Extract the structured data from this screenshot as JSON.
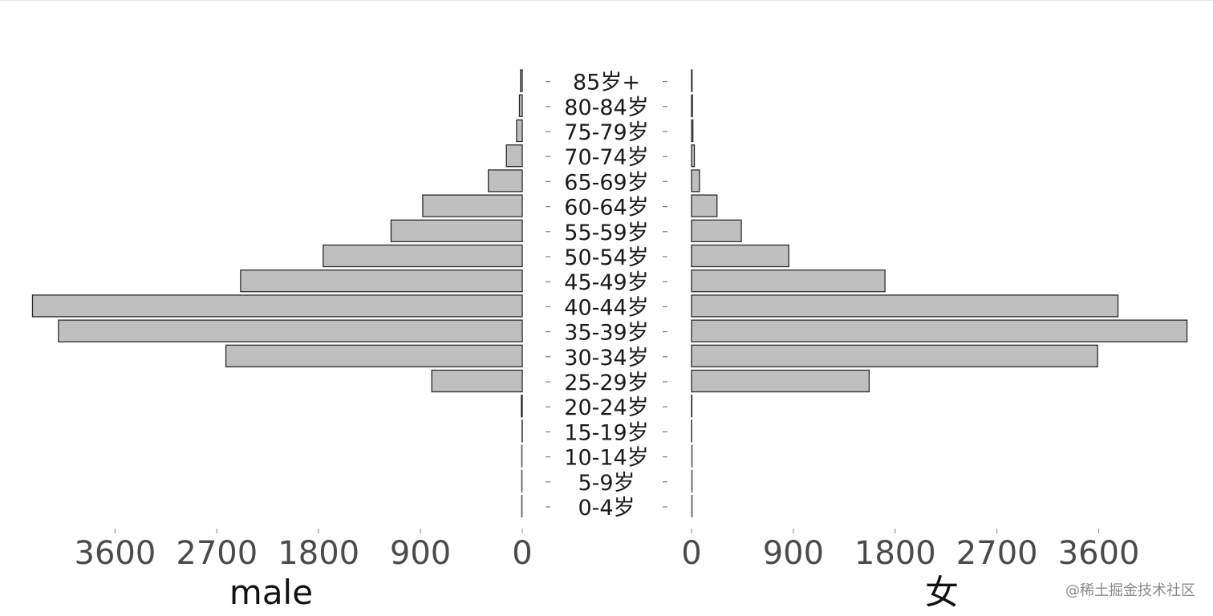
{
  "chart_data": {
    "type": "bar",
    "orientation": "horizontal-population-pyramid",
    "categories": [
      "0-4岁",
      "5-9岁",
      "10-14岁",
      "15-19岁",
      "20-24岁",
      "25-29岁",
      "30-34岁",
      "35-39岁",
      "40-44岁",
      "45-49岁",
      "50-54岁",
      "55-59岁",
      "60-64岁",
      "65-69岁",
      "70-74岁",
      "75-79岁",
      "80-84岁",
      "85岁+"
    ],
    "series": [
      {
        "name": "male",
        "values": [
          0,
          0,
          0,
          2,
          8,
          800,
          2620,
          4100,
          4330,
          2490,
          1760,
          1160,
          880,
          300,
          140,
          50,
          25,
          15
        ]
      },
      {
        "name": "女",
        "values": [
          0,
          0,
          0,
          1,
          3,
          1570,
          3590,
          4380,
          3770,
          1710,
          860,
          440,
          225,
          70,
          25,
          12,
          8,
          5
        ]
      }
    ],
    "left_axis": {
      "xlabel": "male",
      "ticks": [
        3600,
        2700,
        1800,
        900,
        0
      ],
      "tick_labels": [
        "3600",
        "2700",
        "1800",
        "900",
        "0"
      ],
      "xlim": [
        0,
        4400
      ]
    },
    "right_axis": {
      "xlabel": "女",
      "ticks": [
        0,
        900,
        1800,
        2700,
        3600
      ],
      "tick_labels": [
        "0",
        "900",
        "1800",
        "2700",
        "3600"
      ],
      "xlim": [
        0,
        4400
      ]
    },
    "grid": false,
    "legend": "none",
    "bar_color": "#bfbfbf",
    "bar_edge_color": "#2a2a2a"
  },
  "watermark": "@稀土掘金技术社区"
}
